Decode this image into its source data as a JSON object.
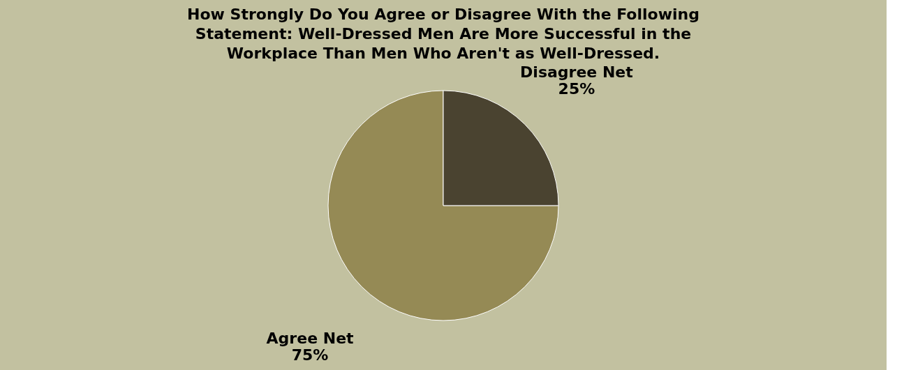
{
  "chart_data": {
    "type": "pie",
    "title": "How Strongly Do You Agree or Disagree With the Following Statement: Well-Dressed Men Are More Successful in the Workplace Than Men Who Aren't as Well-Dressed.",
    "categories": [
      "Agree Net",
      "Disagree Net"
    ],
    "values": [
      75,
      25
    ],
    "colors": [
      "#958a55",
      "#4a4330"
    ],
    "value_labels": [
      "75%",
      "25%"
    ],
    "legend": false
  }
}
